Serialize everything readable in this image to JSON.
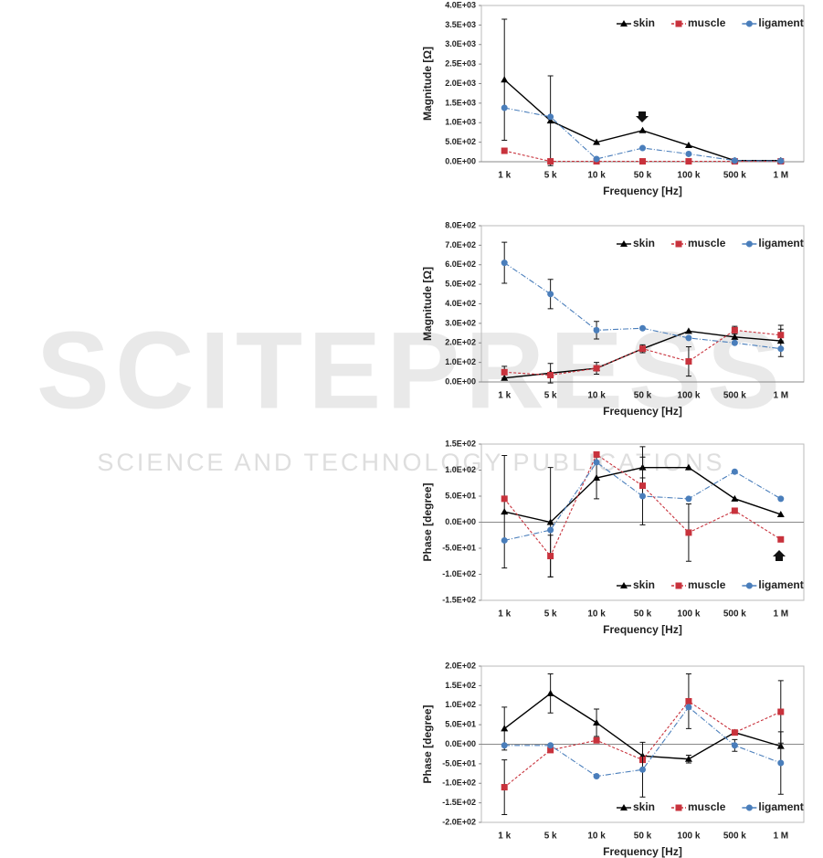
{
  "watermark": {
    "title": "SCITEPRESS",
    "subtitle": "SCIENCE AND TECHNOLOGY PUBLICATIONS"
  },
  "chart_data": [
    {
      "type": "line",
      "xlabel": "Frequency [Hz]",
      "ylabel": "Magnitude [Ω]",
      "categories": [
        "1 k",
        "5 k",
        "10 k",
        "50 k",
        "100 k",
        "500 k",
        "1 M"
      ],
      "ylim": [
        0,
        4000
      ],
      "yticks": [
        {
          "value": 0,
          "label": "0.0E+00"
        },
        {
          "value": 500,
          "label": "5.0E+02"
        },
        {
          "value": 1000,
          "label": "1.0E+03"
        },
        {
          "value": 1500,
          "label": "1.5E+03"
        },
        {
          "value": 2000,
          "label": "2.0E+03"
        },
        {
          "value": 2500,
          "label": "2.5E+03"
        },
        {
          "value": 3000,
          "label": "3.0E+03"
        },
        {
          "value": 3500,
          "label": "3.5E+03"
        },
        {
          "value": 4000,
          "label": "4.0E+03"
        }
      ],
      "grid": false,
      "legend": "upper right",
      "series": [
        {
          "name": "skin",
          "color": "#000000",
          "marker": "triangle",
          "dash": "solid",
          "values": [
            2100,
            1050,
            500,
            800,
            420,
            30,
            30
          ],
          "errors": [
            1550,
            1150,
            null,
            null,
            null,
            null,
            null
          ]
        },
        {
          "name": "muscle",
          "color": "#c8323c",
          "marker": "square",
          "dash": "dashed",
          "values": [
            280,
            10,
            10,
            10,
            10,
            10,
            10
          ],
          "errors": [
            null,
            null,
            null,
            null,
            null,
            null,
            null
          ]
        },
        {
          "name": "ligament",
          "color": "#4a7ebb",
          "marker": "circle",
          "dash": "dashdot",
          "values": [
            1380,
            1150,
            70,
            350,
            200,
            30,
            20
          ],
          "errors": [
            null,
            null,
            null,
            null,
            null,
            null,
            null
          ]
        }
      ]
    },
    {
      "type": "line",
      "xlabel": "Frequency [Hz]",
      "ylabel": "Magnitude [Ω]",
      "categories": [
        "1 k",
        "5 k",
        "10 k",
        "50 k",
        "100 k",
        "500 k",
        "1 M"
      ],
      "ylim": [
        0,
        800
      ],
      "yticks": [
        {
          "value": 0,
          "label": "0.0E+00"
        },
        {
          "value": 100,
          "label": "1.0E+02"
        },
        {
          "value": 200,
          "label": "2.0E+02"
        },
        {
          "value": 300,
          "label": "3.0E+02"
        },
        {
          "value": 400,
          "label": "4.0E+02"
        },
        {
          "value": 500,
          "label": "5.0E+02"
        },
        {
          "value": 600,
          "label": "6.0E+02"
        },
        {
          "value": 700,
          "label": "7.0E+02"
        },
        {
          "value": 800,
          "label": "8.0E+02"
        }
      ],
      "grid": false,
      "legend": "upper right",
      "series": [
        {
          "name": "skin",
          "color": "#000000",
          "marker": "triangle",
          "dash": "solid",
          "values": [
            20,
            45,
            70,
            170,
            260,
            230,
            210
          ],
          "errors": [
            null,
            50,
            30,
            null,
            null,
            null,
            80
          ]
        },
        {
          "name": "muscle",
          "color": "#c8323c",
          "marker": "square",
          "dash": "dashed",
          "values": [
            50,
            35,
            70,
            170,
            105,
            265,
            240
          ],
          "errors": [
            30,
            null,
            null,
            20,
            75,
            20,
            30
          ]
        },
        {
          "name": "ligament",
          "color": "#4a7ebb",
          "marker": "circle",
          "dash": "dashdot",
          "values": [
            610,
            450,
            265,
            275,
            225,
            200,
            170
          ],
          "errors": [
            105,
            75,
            45,
            null,
            null,
            null,
            null
          ]
        }
      ]
    },
    {
      "type": "line",
      "xlabel": "Frequency [Hz]",
      "ylabel": "Phase [degree]",
      "categories": [
        "1 k",
        "5 k",
        "10 k",
        "50 k",
        "100 k",
        "500 k",
        "1 M"
      ],
      "ylim": [
        -150,
        150
      ],
      "yticks": [
        {
          "value": -150,
          "label": "-1.5E+02"
        },
        {
          "value": -100,
          "label": "-1.0E+02"
        },
        {
          "value": -50,
          "label": "-5.0E+01"
        },
        {
          "value": 0,
          "label": "0.0E+00"
        },
        {
          "value": 50,
          "label": "5.0E+01"
        },
        {
          "value": 100,
          "label": "1.0E+02"
        },
        {
          "value": 150,
          "label": "1.5E+02"
        }
      ],
      "grid": false,
      "legend": "lower right",
      "series": [
        {
          "name": "skin",
          "color": "#000000",
          "marker": "triangle",
          "dash": "solid",
          "values": [
            20,
            0,
            85,
            105,
            105,
            45,
            15
          ],
          "errors": [
            108,
            105,
            40,
            20,
            null,
            null,
            null
          ]
        },
        {
          "name": "muscle",
          "color": "#c8323c",
          "marker": "square",
          "dash": "dashed",
          "values": [
            45,
            -65,
            130,
            70,
            -20,
            22,
            -33
          ],
          "errors": [
            null,
            40,
            null,
            75,
            55,
            null,
            null
          ]
        },
        {
          "name": "ligament",
          "color": "#4a7ebb",
          "marker": "circle",
          "dash": "dashdot",
          "values": [
            -35,
            -15,
            115,
            50,
            45,
            97,
            45
          ],
          "errors": [
            null,
            null,
            null,
            null,
            null,
            null,
            null
          ]
        }
      ]
    },
    {
      "type": "line",
      "xlabel": "Frequency [Hz]",
      "ylabel": "Phase [degree]",
      "categories": [
        "1 k",
        "5 k",
        "10 k",
        "50 k",
        "100 k",
        "500 k",
        "1 M"
      ],
      "ylim": [
        -200,
        200
      ],
      "yticks": [
        {
          "value": -200,
          "label": "-2.0E+02"
        },
        {
          "value": -150,
          "label": "-1.5E+02"
        },
        {
          "value": -100,
          "label": "-1.0E+02"
        },
        {
          "value": -50,
          "label": "-5.0E+01"
        },
        {
          "value": 0,
          "label": "0.0E+00"
        },
        {
          "value": 50,
          "label": "5.0E+01"
        },
        {
          "value": 100,
          "label": "1.0E+02"
        },
        {
          "value": 150,
          "label": "1.5E+02"
        },
        {
          "value": 200,
          "label": "2.0E+02"
        }
      ],
      "grid": false,
      "legend": "lower right",
      "series": [
        {
          "name": "skin",
          "color": "#000000",
          "marker": "triangle",
          "dash": "solid",
          "values": [
            40,
            130,
            55,
            -30,
            -38,
            30,
            -5
          ],
          "errors": [
            55,
            50,
            35,
            null,
            10,
            null,
            null
          ]
        },
        {
          "name": "muscle",
          "color": "#c8323c",
          "marker": "square",
          "dash": "dashed",
          "values": [
            -110,
            -15,
            10,
            -40,
            110,
            30,
            83
          ],
          "errors": [
            70,
            null,
            null,
            null,
            70,
            null,
            80
          ]
        },
        {
          "name": "ligament",
          "color": "#4a7ebb",
          "marker": "circle",
          "dash": "dashdot",
          "values": [
            -3,
            -3,
            -82,
            -65,
            95,
            -3,
            -48
          ],
          "errors": [
            null,
            null,
            null,
            70,
            null,
            15,
            80
          ]
        }
      ]
    }
  ]
}
